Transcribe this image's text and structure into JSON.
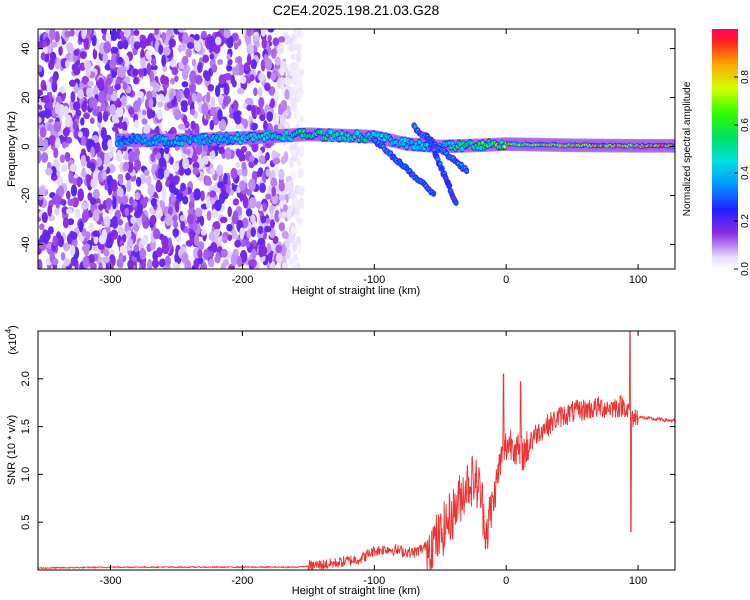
{
  "title": "C2E4.2025.198.21.03.G28",
  "chart_data": [
    {
      "type": "heatmap",
      "xlabel": "Height of straight line (km)",
      "ylabel": "Frequency (Hz)",
      "xlim": [
        -355,
        128
      ],
      "ylim": [
        -50,
        48
      ],
      "xticks": [
        -300,
        -200,
        -100,
        0,
        100
      ],
      "yticks": [
        -40,
        -20,
        0,
        20,
        40
      ],
      "colorbar": {
        "label": "Normalized spectral amplitude",
        "range": [
          0,
          1
        ],
        "ticks": [
          0.0,
          0.2,
          0.4,
          0.6,
          0.8
        ],
        "colormap": "rainbow (white-violet low, red high)"
      },
      "features": {
        "noise_region_x": [
          -355,
          -155
        ],
        "main_ridge": [
          {
            "x": -295,
            "f": 2.5,
            "amp": 0.35
          },
          {
            "x": -250,
            "f": 2.5,
            "amp": 0.4
          },
          {
            "x": -200,
            "f": 3.5,
            "amp": 0.45
          },
          {
            "x": -150,
            "f": 5.0,
            "amp": 0.55
          },
          {
            "x": -100,
            "f": 4.0,
            "amp": 0.5
          },
          {
            "x": -75,
            "f": 1.0,
            "amp": 0.45
          },
          {
            "x": -50,
            "f": 0.0,
            "amp": 0.5
          },
          {
            "x": -20,
            "f": 0.5,
            "amp": 0.6
          },
          {
            "x": 0,
            "f": 1.0,
            "amp": 0.7
          },
          {
            "x": 50,
            "f": 0.5,
            "amp": 0.85
          },
          {
            "x": 100,
            "f": 0.3,
            "amp": 0.9
          },
          {
            "x": 128,
            "f": 0.3,
            "amp": 0.95
          }
        ],
        "branches": [
          {
            "from": [
              -100,
              3
            ],
            "to": [
              -55,
              -19
            ],
            "amp": 0.35
          },
          {
            "from": [
              -70,
              8
            ],
            "to": [
              -30,
              -10
            ],
            "amp": 0.4
          },
          {
            "from": [
              -60,
              5
            ],
            "to": [
              -38,
              -23
            ],
            "amp": 0.3
          }
        ]
      }
    },
    {
      "type": "line",
      "xlabel": "Height of straight line (km)",
      "ylabel": "SNR (10 * v/v)",
      "scale_note": "(x10",
      "scale_exp": "4",
      "xlim": [
        -355,
        128
      ],
      "ylim": [
        0,
        2.5
      ],
      "xticks": [
        -300,
        -200,
        -100,
        0,
        100
      ],
      "yticks": [
        0.5,
        1.0,
        1.5,
        2.0
      ],
      "series": [
        {
          "color": "#ee3333",
          "x": [
            -355,
            -300,
            -250,
            -200,
            -160,
            -150,
            -130,
            -110,
            -100,
            -90,
            -80,
            -70,
            -60,
            -50,
            -45,
            -40,
            -35,
            -30,
            -25,
            -20,
            -15,
            -10,
            -5,
            0,
            5,
            10,
            15,
            20,
            30,
            40,
            50,
            60,
            70,
            80,
            90,
            95,
            100,
            110,
            120,
            128
          ],
          "y": [
            0.02,
            0.03,
            0.03,
            0.03,
            0.03,
            0.04,
            0.07,
            0.12,
            0.2,
            0.22,
            0.2,
            0.18,
            0.25,
            0.35,
            0.5,
            0.6,
            0.75,
            0.9,
            0.95,
            0.85,
            0.4,
            0.7,
            1.1,
            1.3,
            1.35,
            1.2,
            1.25,
            1.4,
            1.5,
            1.6,
            1.65,
            1.68,
            1.7,
            1.7,
            1.72,
            1.6,
            1.6,
            1.58,
            1.57,
            1.56
          ]
        }
      ]
    }
  ]
}
